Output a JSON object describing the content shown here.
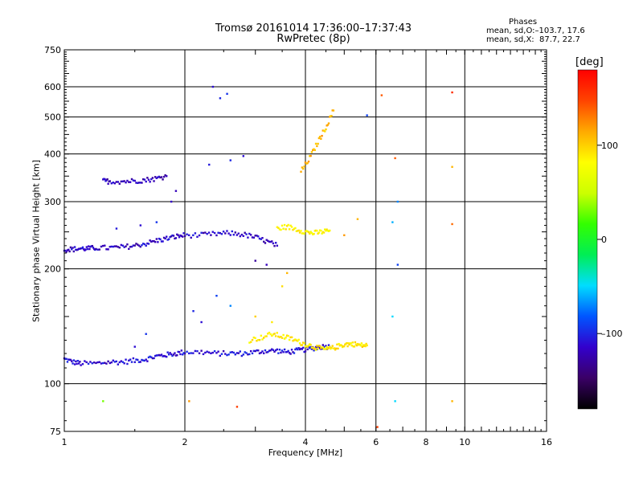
{
  "header": {
    "title_line1": "Tromsø 20161014 17:36:00–17:37:43",
    "title_line2": "RwPretec (8p)",
    "stats_title": "Phases",
    "stats_o": "mean, sd,O:–103.7, 17.6",
    "stats_x": "mean, sd,X:  87.7, 22.7"
  },
  "colorbar": {
    "title": "[deg]",
    "ticks": [
      {
        "value": 100,
        "label": "100"
      },
      {
        "value": 0,
        "label": "0"
      },
      {
        "value": -100,
        "label": "–100"
      }
    ],
    "range": [
      -180,
      180
    ],
    "colors": [
      "#000000",
      "#3a0066",
      "#3300cc",
      "#0055ff",
      "#00ddff",
      "#00ee55",
      "#33ff00",
      "#ccff00",
      "#ffff00",
      "#ffaa00",
      "#ff4400",
      "#ff0000"
    ]
  },
  "chart_data": {
    "type": "scatter",
    "title": "Tromsø 20161014 17:36:00–17:37:43",
    "subtitle": "RwPretec (8p)",
    "xlabel": "Frequency [MHz]",
    "ylabel": "Stationary phase Virtual Height [km]",
    "xscale": "log",
    "yscale": "log",
    "xlim": [
      1,
      16
    ],
    "ylim": [
      75,
      750
    ],
    "xticks": [
      1,
      2,
      4,
      6,
      8,
      10,
      16
    ],
    "yticks": [
      75,
      100,
      200,
      300,
      400,
      500,
      600,
      750
    ],
    "grid": true,
    "color_variable": "phase [deg]",
    "traces": [
      {
        "name": "E-region trace",
        "x": [
          1.0,
          1.05,
          1.1,
          1.2,
          1.3,
          1.4,
          1.5,
          1.6,
          1.7,
          1.8,
          1.9,
          2.0,
          2.2,
          2.4,
          2.6,
          2.8,
          3.0,
          3.2,
          3.4,
          3.6,
          3.8,
          4.0,
          4.2,
          4.4,
          4.6
        ],
        "y": [
          116,
          114,
          113,
          113,
          114,
          114,
          115,
          116,
          118,
          119,
          120,
          121,
          121,
          120,
          120,
          120,
          121,
          122,
          122,
          121,
          122,
          123,
          124,
          125,
          125
        ],
        "phase": -110
      },
      {
        "name": "F-region lower trace",
        "x": [
          1.0,
          1.05,
          1.1,
          1.15,
          1.2,
          1.3,
          1.4,
          1.5,
          1.6,
          1.7,
          1.8,
          1.9,
          2.0,
          2.2,
          2.4,
          2.6,
          2.8,
          3.0,
          3.2,
          3.4
        ],
        "y": [
          225,
          225,
          226,
          226,
          227,
          227,
          228,
          230,
          233,
          237,
          240,
          243,
          245,
          245,
          247,
          248,
          246,
          242,
          236,
          230
        ],
        "phase": -115
      },
      {
        "name": "F-region upper trace",
        "x": [
          1.25,
          1.3,
          1.4,
          1.5,
          1.6,
          1.7,
          1.8
        ],
        "y": [
          340,
          339,
          339,
          340,
          342,
          345,
          350
        ],
        "phase": -118
      },
      {
        "name": "X-mode trace",
        "x": [
          2.9,
          3.1,
          3.3,
          3.5,
          3.7,
          3.9,
          4.1,
          4.3,
          4.5,
          4.7,
          4.9,
          5.1,
          5.3,
          5.5,
          5.7
        ],
        "y": [
          130,
          132,
          135,
          133,
          131,
          128,
          126,
          124,
          123,
          124,
          126,
          127,
          127,
          126,
          126
        ],
        "phase": 90
      },
      {
        "name": "F-region X trace",
        "x": [
          3.4,
          3.6,
          3.8,
          4.0,
          4.2,
          4.4,
          4.6
        ],
        "y": [
          255,
          258,
          254,
          250,
          248,
          250,
          252
        ],
        "phase": 85
      },
      {
        "name": "High X-mode trace",
        "x": [
          3.9,
          4.1,
          4.3,
          4.5,
          4.7
        ],
        "y": [
          360,
          390,
          430,
          470,
          520
        ],
        "phase": 110
      }
    ],
    "scatter_points": [
      {
        "x": 2.35,
        "y": 600,
        "phase": -110
      },
      {
        "x": 2.45,
        "y": 560,
        "phase": -100
      },
      {
        "x": 2.55,
        "y": 575,
        "phase": -95
      },
      {
        "x": 2.3,
        "y": 375,
        "phase": -105
      },
      {
        "x": 2.6,
        "y": 385,
        "phase": -100
      },
      {
        "x": 2.8,
        "y": 395,
        "phase": -110
      },
      {
        "x": 1.9,
        "y": 320,
        "phase": -120
      },
      {
        "x": 1.85,
        "y": 300,
        "phase": -115
      },
      {
        "x": 3.0,
        "y": 210,
        "phase": -130
      },
      {
        "x": 3.2,
        "y": 205,
        "phase": -120
      },
      {
        "x": 3.5,
        "y": 180,
        "phase": 95
      },
      {
        "x": 3.6,
        "y": 195,
        "phase": 110
      },
      {
        "x": 5.7,
        "y": 505,
        "phase": -90
      },
      {
        "x": 6.2,
        "y": 570,
        "phase": 140
      },
      {
        "x": 9.3,
        "y": 580,
        "phase": 160
      },
      {
        "x": 9.3,
        "y": 370,
        "phase": 110
      },
      {
        "x": 9.3,
        "y": 262,
        "phase": 135
      },
      {
        "x": 6.7,
        "y": 390,
        "phase": 140
      },
      {
        "x": 6.8,
        "y": 300,
        "phase": -70
      },
      {
        "x": 6.8,
        "y": 205,
        "phase": -90
      },
      {
        "x": 6.6,
        "y": 265,
        "phase": -60
      },
      {
        "x": 6.6,
        "y": 150,
        "phase": -50
      },
      {
        "x": 6.7,
        "y": 90,
        "phase": -50
      },
      {
        "x": 9.3,
        "y": 90,
        "phase": 110
      },
      {
        "x": 1.25,
        "y": 90,
        "phase": 30
      },
      {
        "x": 2.05,
        "y": 90,
        "phase": 120
      },
      {
        "x": 2.7,
        "y": 87,
        "phase": 150
      },
      {
        "x": 6.05,
        "y": 77,
        "phase": 150
      },
      {
        "x": 1.35,
        "y": 255,
        "phase": -105
      },
      {
        "x": 1.55,
        "y": 260,
        "phase": -110
      },
      {
        "x": 1.7,
        "y": 265,
        "phase": -95
      },
      {
        "x": 2.1,
        "y": 155,
        "phase": -100
      },
      {
        "x": 2.2,
        "y": 145,
        "phase": -110
      },
      {
        "x": 2.4,
        "y": 170,
        "phase": -90
      },
      {
        "x": 2.6,
        "y": 160,
        "phase": -70
      },
      {
        "x": 1.6,
        "y": 135,
        "phase": -95
      },
      {
        "x": 1.5,
        "y": 125,
        "phase": -110
      },
      {
        "x": 3.0,
        "y": 150,
        "phase": 100
      },
      {
        "x": 3.3,
        "y": 145,
        "phase": 90
      },
      {
        "x": 5.0,
        "y": 245,
        "phase": 120
      },
      {
        "x": 5.4,
        "y": 270,
        "phase": 110
      }
    ]
  }
}
